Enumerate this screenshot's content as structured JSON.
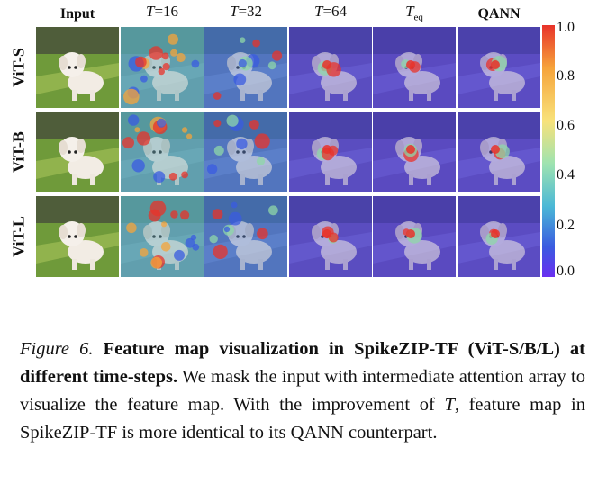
{
  "columns": {
    "input": "Input",
    "t16": {
      "var": "T",
      "eq": "=16"
    },
    "t32": {
      "var": "T",
      "eq": "=32"
    },
    "t64": {
      "var": "T",
      "eq": "=64"
    },
    "teq": {
      "var": "T",
      "sub": "eq"
    },
    "qann": "QANN"
  },
  "rows": [
    "ViT-S",
    "ViT-B",
    "ViT-L"
  ],
  "colorbar": {
    "ticks": [
      "1.0",
      "0.8",
      "0.6",
      "0.4",
      "0.2",
      "0.0"
    ],
    "colors": [
      "#e8332a",
      "#f6a43b",
      "#f8e27a",
      "#9ee3b0",
      "#4bb8d6",
      "#3a5be0",
      "#6a2ff0"
    ]
  },
  "caption": {
    "label": "Figure 6.",
    "title": "Feature map visualization in SpikeZIP-TF (ViT-S/B/L) at different time-steps.",
    "body_1": "We mask the input with intermediate attention array to visualize the feature map.  With the improvement of ",
    "var": "T",
    "body_2": ", feature map in SpikeZIP-TF is more identical to its QANN counterpart."
  }
}
